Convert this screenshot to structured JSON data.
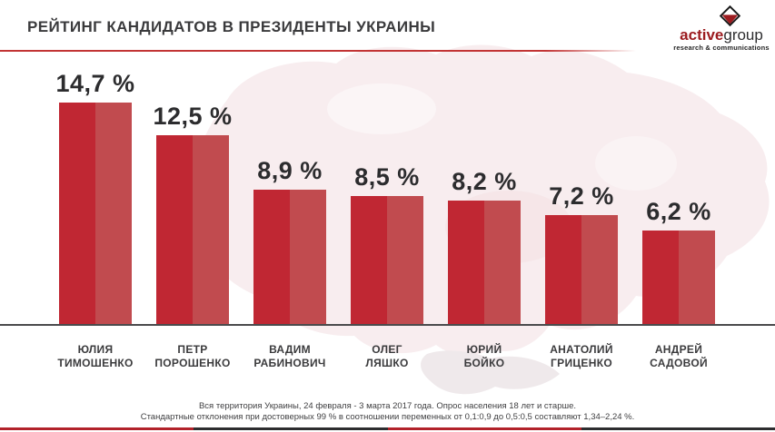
{
  "title": "РЕЙТИНГ КАНДИДАТОВ В ПРЕЗИДЕНТЫ УКРАИНЫ",
  "logo": {
    "brand_bold": "active",
    "brand_regular": "group",
    "tagline": "research & communications"
  },
  "chart_data": {
    "type": "bar",
    "title": "РЕЙТИНГ КАНДИДАТОВ В ПРЕЗИДЕНТЫ УКРАИНЫ",
    "categories": [
      "ЮЛИЯ ТИМОШЕНКО",
      "ПЕТР ПОРОШЕНКО",
      "ВАДИМ РАБИНОВИЧ",
      "ОЛЕГ ЛЯШКО",
      "ЮРИЙ БОЙКО",
      "АНАТОЛИЙ ГРИЦЕНКО",
      "АНДРЕЙ САДОВОЙ"
    ],
    "values": [
      14.7,
      12.5,
      8.9,
      8.5,
      8.2,
      7.2,
      6.2
    ],
    "value_labels": [
      "14,7 %",
      "12,5 %",
      "8,9 %",
      "8,5 %",
      "8,2 %",
      "7,2 %",
      "6,2 %"
    ],
    "xlabel": "",
    "ylabel": "",
    "ylim": [
      0,
      16
    ],
    "grid": false,
    "legend": false,
    "bar_color_left": "#c02733",
    "bar_color_right": "#c14b4f"
  },
  "bars": [
    {
      "name_line1": "ЮЛИЯ",
      "name_line2": "ТИМОШЕНКО",
      "value": 14.7,
      "display": "14,7 %"
    },
    {
      "name_line1": "ПЕТР",
      "name_line2": "ПОРОШЕНКО",
      "value": 12.5,
      "display": "12,5 %"
    },
    {
      "name_line1": "ВАДИМ",
      "name_line2": "РАБИНОВИЧ",
      "value": 8.9,
      "display": "8,9 %"
    },
    {
      "name_line1": "ОЛЕГ",
      "name_line2": "ЛЯШКО",
      "value": 8.5,
      "display": "8,5 %"
    },
    {
      "name_line1": "ЮРИЙ",
      "name_line2": "БОЙКО",
      "value": 8.2,
      "display": "8,2 %"
    },
    {
      "name_line1": "АНАТОЛИЙ",
      "name_line2": "ГРИЦЕНКО",
      "value": 7.2,
      "display": "7,2 %"
    },
    {
      "name_line1": "АНДРЕЙ",
      "name_line2": "САДОВОЙ",
      "value": 6.2,
      "display": "6,2 %"
    }
  ],
  "footer": {
    "line1": "Вся территория Украины, 24 февраля - 3 марта 2017 года. Опрос населения 18 лет и старше.",
    "line2": "Стандартные отклонения при достоверных 99 % в соотношении переменных от 0,1:0,9 до 0,5:0,5 составляют 1,34–2,24 %."
  },
  "colors": {
    "accent_red": "#c02733",
    "accent_red_light": "#c14b4f",
    "title_rule_red": "#c23434",
    "logo_red": "#9c1c20",
    "text_dark": "#3a3a3c",
    "baseline": "#4a4a4c",
    "map_fill": "#f8edef",
    "bottom_segments": [
      "#b2222a",
      "#2d2d2f",
      "#b2222a",
      "#2d2d2f"
    ]
  }
}
